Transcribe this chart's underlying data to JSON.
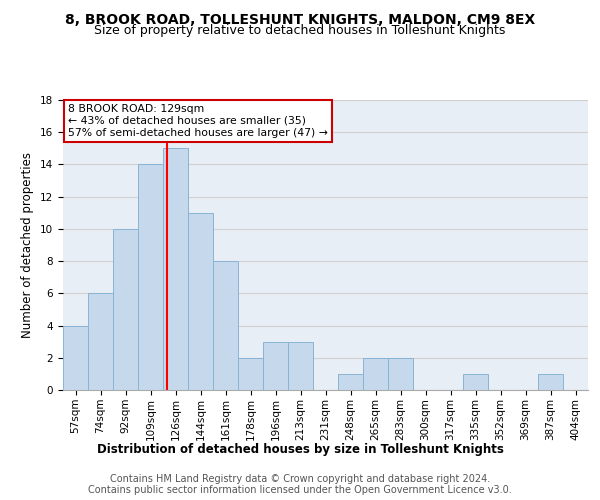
{
  "title": "8, BROOK ROAD, TOLLESHUNT KNIGHTS, MALDON, CM9 8EX",
  "subtitle": "Size of property relative to detached houses in Tolleshunt Knights",
  "xlabel": "Distribution of detached houses by size in Tolleshunt Knights",
  "ylabel": "Number of detached properties",
  "bin_labels": [
    "57sqm",
    "74sqm",
    "92sqm",
    "109sqm",
    "126sqm",
    "144sqm",
    "161sqm",
    "178sqm",
    "196sqm",
    "213sqm",
    "231sqm",
    "248sqm",
    "265sqm",
    "283sqm",
    "300sqm",
    "317sqm",
    "335sqm",
    "352sqm",
    "369sqm",
    "387sqm",
    "404sqm"
  ],
  "bar_values": [
    4,
    6,
    10,
    14,
    15,
    11,
    8,
    2,
    3,
    3,
    0,
    1,
    2,
    2,
    0,
    0,
    1,
    0,
    0,
    1,
    0
  ],
  "bar_color": "#c6d9ec",
  "bar_edge_color": "#8ab4d4",
  "grid_color": "#d0d0d0",
  "background_color": "#e8eef5",
  "annotation_text": "8 BROOK ROAD: 129sqm\n← 43% of detached houses are smaller (35)\n57% of semi-detached houses are larger (47) →",
  "annotation_box_color": "#ffffff",
  "annotation_box_edge": "#cc0000",
  "footer1": "Contains HM Land Registry data © Crown copyright and database right 2024.",
  "footer2": "Contains public sector information licensed under the Open Government Licence v3.0.",
  "ylim": [
    0,
    18
  ],
  "yticks": [
    0,
    2,
    4,
    6,
    8,
    10,
    12,
    14,
    16,
    18
  ],
  "title_fontsize": 10,
  "subtitle_fontsize": 9,
  "axis_label_fontsize": 8.5,
  "tick_fontsize": 7.5,
  "footer_fontsize": 7
}
